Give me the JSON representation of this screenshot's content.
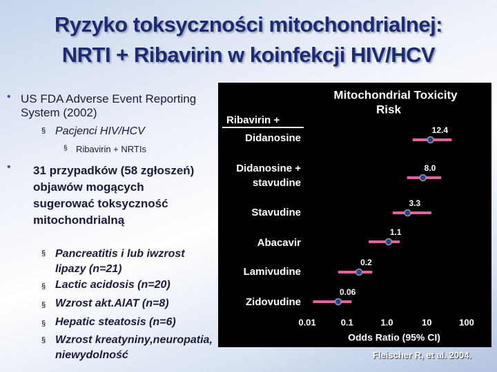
{
  "slide": {
    "title_lines": [
      "Ryzyko toksyczności mitochondrialnej:",
      "NRTI + Ribavirin w koinfekcji HIV/HCV"
    ],
    "bullets": [
      {
        "level": 1,
        "text": "US FDA Adverse Event Reporting System (2002)"
      },
      {
        "level": 2,
        "text": "Pacjenci HIV/HCV"
      },
      {
        "level": 3,
        "text": "Ribavirin + NRTIs"
      },
      {
        "level": 1,
        "text": "31 przypadków (58 zgłoszeń) objawów mogących sugerować toksyczność mitochondrialną"
      },
      {
        "level": 2,
        "text": "Pancreatitis i lub iwzrost lipazy (n=21)"
      },
      {
        "level": 2,
        "text": "Lactic acidosis (n=20)"
      },
      {
        "level": 2,
        "text": "Wzrost akt.AlAT (n=8)"
      },
      {
        "level": 2,
        "text": "Hepatic steatosis (n=6)"
      },
      {
        "level": 2,
        "text": "Wzrost kreatyniny,neuropatia, niewydolność"
      }
    ],
    "source": "Fleischer R, et al. 2004."
  },
  "chart_data": {
    "type": "forest",
    "title": [
      "Mitochondrial Toxicity",
      "Risk"
    ],
    "group_label": "Ribavirin +",
    "categories": [
      "Didanosine",
      "Didanosine + stavudine",
      "Stavudine",
      "Abacavir",
      "Lamivudine",
      "Zidovudine"
    ],
    "values": [
      12.4,
      8,
      3.3,
      1.1,
      0.2,
      0.06
    ],
    "value_labels": [
      "12.4",
      "8.0",
      "3.3",
      "1.1",
      "0.2",
      "0.06"
    ],
    "lower": [
      4.4,
      3.2,
      1.4,
      0.35,
      0.06,
      0.014
    ],
    "upper": [
      42,
      23,
      13,
      2.1,
      0.43,
      0.13
    ],
    "xlabel": "Odds Ratio (95% CI)",
    "log_x": true,
    "xlim": [
      0.01,
      100
    ],
    "xticks": [
      0.01,
      0.1,
      {
        "value": 1,
        "label": "1.0"
      },
      10,
      100
    ],
    "color": "#e8609e",
    "point_color": "#2a3d8f"
  }
}
